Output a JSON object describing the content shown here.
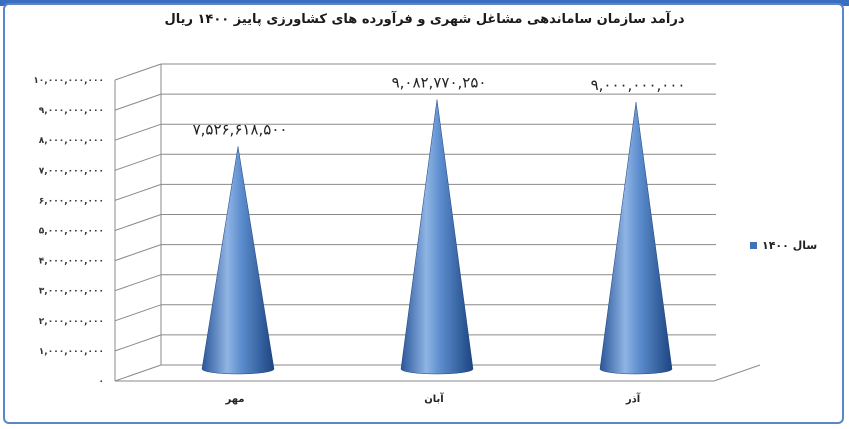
{
  "chart_data": {
    "type": "bar",
    "style": "3d-cone",
    "title": "درآمد سازمان ساماندهی مشاغل شهری و فرآورده های کشاورزی پاییز ۱۴۰۰ ریال",
    "categories": [
      "مهر",
      "آبان",
      "آذر"
    ],
    "series": [
      {
        "name": "سال ۱۴۰۰",
        "values": [
          7526618500,
          9082770250,
          9000000000
        ],
        "labels": [
          "۷,۵۲۶,۶۱۸,۵۰۰",
          "۹,۰۸۲,۷۷۰,۲۵۰",
          "۹,۰۰۰,۰۰۰,۰۰۰"
        ]
      }
    ],
    "ylim": [
      0,
      10000000000
    ],
    "yticks": [
      0,
      1000000000,
      2000000000,
      3000000000,
      4000000000,
      5000000000,
      6000000000,
      7000000000,
      8000000000,
      9000000000,
      10000000000
    ],
    "ytick_labels": [
      "۰",
      "۱,۰۰۰,۰۰۰,۰۰۰",
      "۲,۰۰۰,۰۰۰,۰۰۰",
      "۳,۰۰۰,۰۰۰,۰۰۰",
      "۴,۰۰۰,۰۰۰,۰۰۰",
      "۵,۰۰۰,۰۰۰,۰۰۰",
      "۶,۰۰۰,۰۰۰,۰۰۰",
      "۷,۰۰۰,۰۰۰,۰۰۰",
      "۸,۰۰۰,۰۰۰,۰۰۰",
      "۹,۰۰۰,۰۰۰,۰۰۰",
      "۱۰,۰۰۰,۰۰۰,۰۰۰"
    ],
    "grid": true,
    "legend": "right",
    "colors": {
      "cone": "#3f72b8",
      "cone_light": "#a9c6ea",
      "cone_dark": "#1f4a86",
      "grid": "#8a8a8a",
      "frame": "#5b86c6"
    }
  }
}
